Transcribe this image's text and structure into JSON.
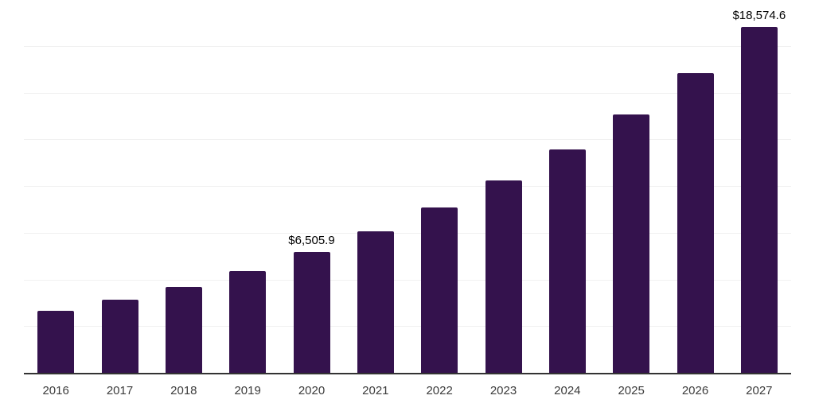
{
  "chart_data": {
    "type": "bar",
    "title": "",
    "xlabel": "",
    "ylabel": "",
    "categories": [
      "2016",
      "2017",
      "2018",
      "2019",
      "2020",
      "2021",
      "2022",
      "2023",
      "2024",
      "2025",
      "2026",
      "2027"
    ],
    "values": [
      3360,
      3960,
      4660,
      5510,
      6505.9,
      7620,
      8890,
      10360,
      12020,
      13870,
      16070,
      18574.6
    ],
    "value_labels": [
      "",
      "",
      "",
      "",
      "$6,505.9",
      "",
      "",
      "",
      "",
      "",
      "",
      "$18,574.6"
    ],
    "ylim": [
      0,
      20000
    ],
    "gridline_step": 2500,
    "grid_on": true,
    "legend": "none",
    "colors": {
      "bar_fill": "#34124D",
      "axis_line": "#333333",
      "gridline": "#F1F1F1",
      "tick_text": "#3C3C3C",
      "value_text": "#000000",
      "background": "#FFFFFF"
    }
  }
}
